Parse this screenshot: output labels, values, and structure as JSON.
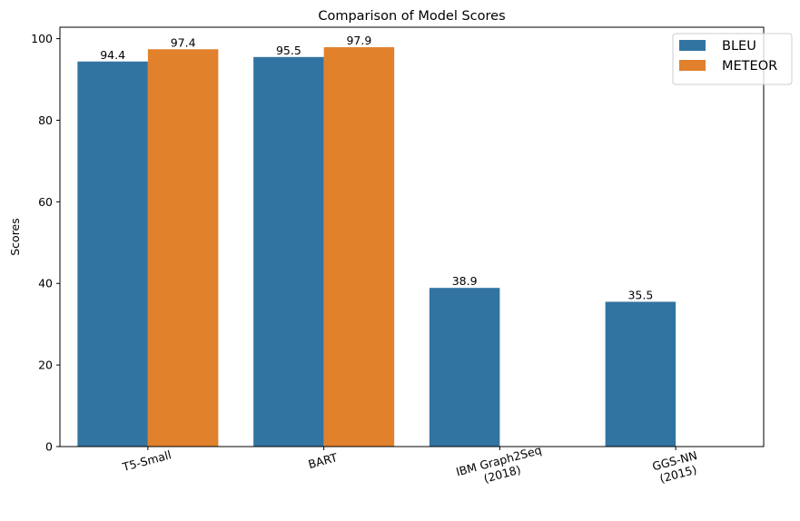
{
  "chart_data": {
    "type": "bar",
    "title": "Comparison of Model Scores",
    "xlabel": "",
    "ylabel": "Scores",
    "categories": [
      [
        "T5-Small"
      ],
      [
        "BART"
      ],
      [
        "IBM Graph2Seq",
        "(2018)"
      ],
      [
        "GGS-NN",
        "(2015)"
      ]
    ],
    "series": [
      {
        "name": "BLEU",
        "color": "#3274a1",
        "values": [
          94.4,
          95.5,
          38.9,
          35.5
        ]
      },
      {
        "name": "METEOR",
        "color": "#e1812c",
        "values": [
          97.4,
          97.9,
          null,
          null
        ]
      }
    ],
    "ylim": [
      0,
      102.8
    ],
    "yticks": [
      0,
      20,
      40,
      60,
      80,
      100
    ],
    "grid": false,
    "legend_position": "top-right",
    "tick_label_rotation": -15
  }
}
